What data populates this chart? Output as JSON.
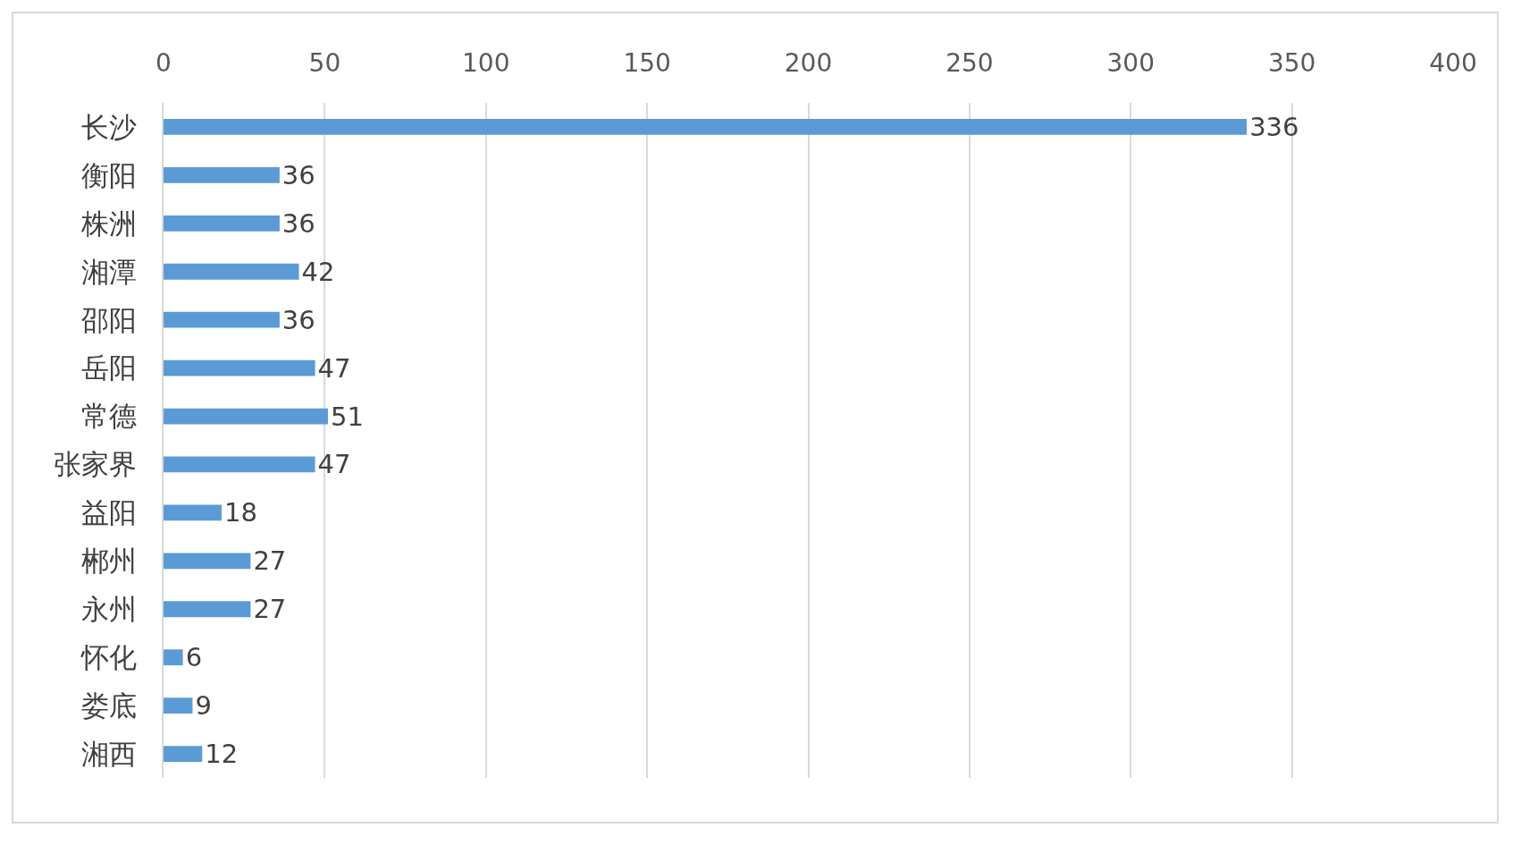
{
  "chart_data": {
    "type": "bar",
    "orientation": "horizontal",
    "categories": [
      "长沙",
      "衡阳",
      "株洲",
      "湘潭",
      "邵阳",
      "岳阳",
      "常德",
      "张家界",
      "益阳",
      "郴州",
      "永州",
      "怀化",
      "娄底",
      "湘西"
    ],
    "values": [
      336,
      36,
      36,
      42,
      36,
      47,
      51,
      47,
      18,
      27,
      27,
      6,
      9,
      12
    ],
    "color": "#5b9bd5",
    "xlim": [
      0,
      400
    ],
    "xticks": [
      0,
      50,
      100,
      150,
      200,
      250,
      300,
      350,
      400
    ],
    "grid": "x",
    "data_labels": true
  }
}
